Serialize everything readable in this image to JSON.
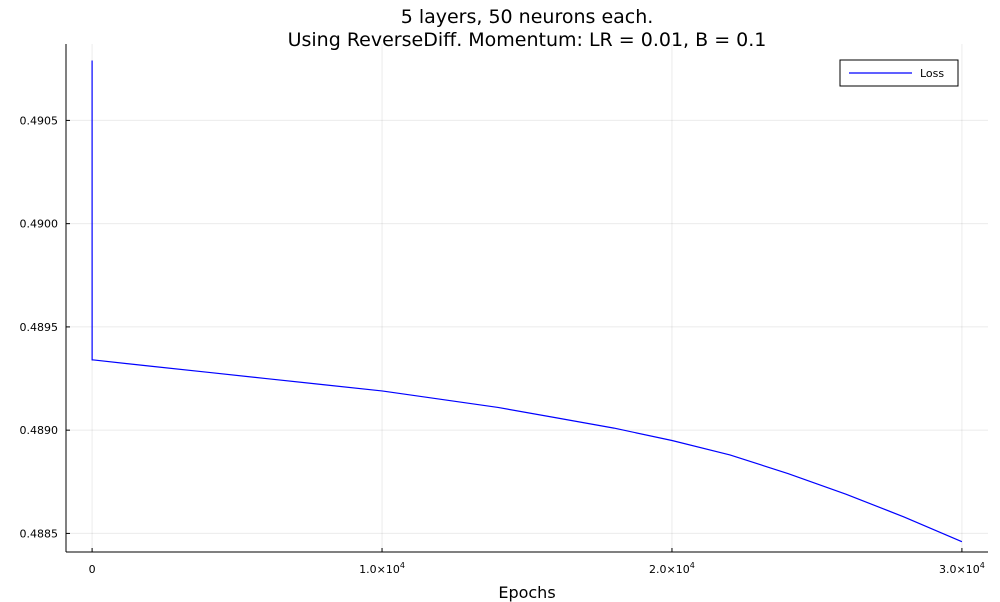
{
  "chart_data": {
    "type": "line",
    "title_lines": [
      "5 layers, 50 neurons each.",
      "Using ReverseDiff. Momentum: LR = 0.01, B = 0.1"
    ],
    "xlabel": "Epochs",
    "ylabel": "",
    "xlim": [
      -900,
      30900
    ],
    "ylim": [
      0.48841,
      0.49087
    ],
    "xticks": [
      {
        "value": 0,
        "label": "0",
        "mantissa": "",
        "exp": ""
      },
      {
        "value": 10000,
        "label": "",
        "mantissa": "1.0×10",
        "exp": "4"
      },
      {
        "value": 20000,
        "label": "",
        "mantissa": "2.0×10",
        "exp": "4"
      },
      {
        "value": 30000,
        "label": "",
        "mantissa": "3.0×10",
        "exp": "4"
      }
    ],
    "yticks": [
      {
        "value": 0.4885,
        "label": "0.4885"
      },
      {
        "value": 0.489,
        "label": "0.4890"
      },
      {
        "value": 0.4895,
        "label": "0.4895"
      },
      {
        "value": 0.49,
        "label": "0.4900"
      },
      {
        "value": 0.4905,
        "label": "0.4905"
      }
    ],
    "grid": true,
    "legend_position": "top-right",
    "series": [
      {
        "name": "Loss",
        "color": "#0000ff",
        "x": [
          0,
          1,
          50,
          2000,
          4000,
          6000,
          8000,
          10000,
          12000,
          14000,
          16000,
          18000,
          20000,
          22000,
          24000,
          26000,
          28000,
          30000
        ],
        "y": [
          0.49079,
          0.48934,
          0.48934,
          0.48931,
          0.48928,
          0.48925,
          0.48922,
          0.48919,
          0.48915,
          0.48911,
          0.48906,
          0.48901,
          0.48895,
          0.48888,
          0.48879,
          0.48869,
          0.48858,
          0.48846
        ]
      }
    ]
  }
}
